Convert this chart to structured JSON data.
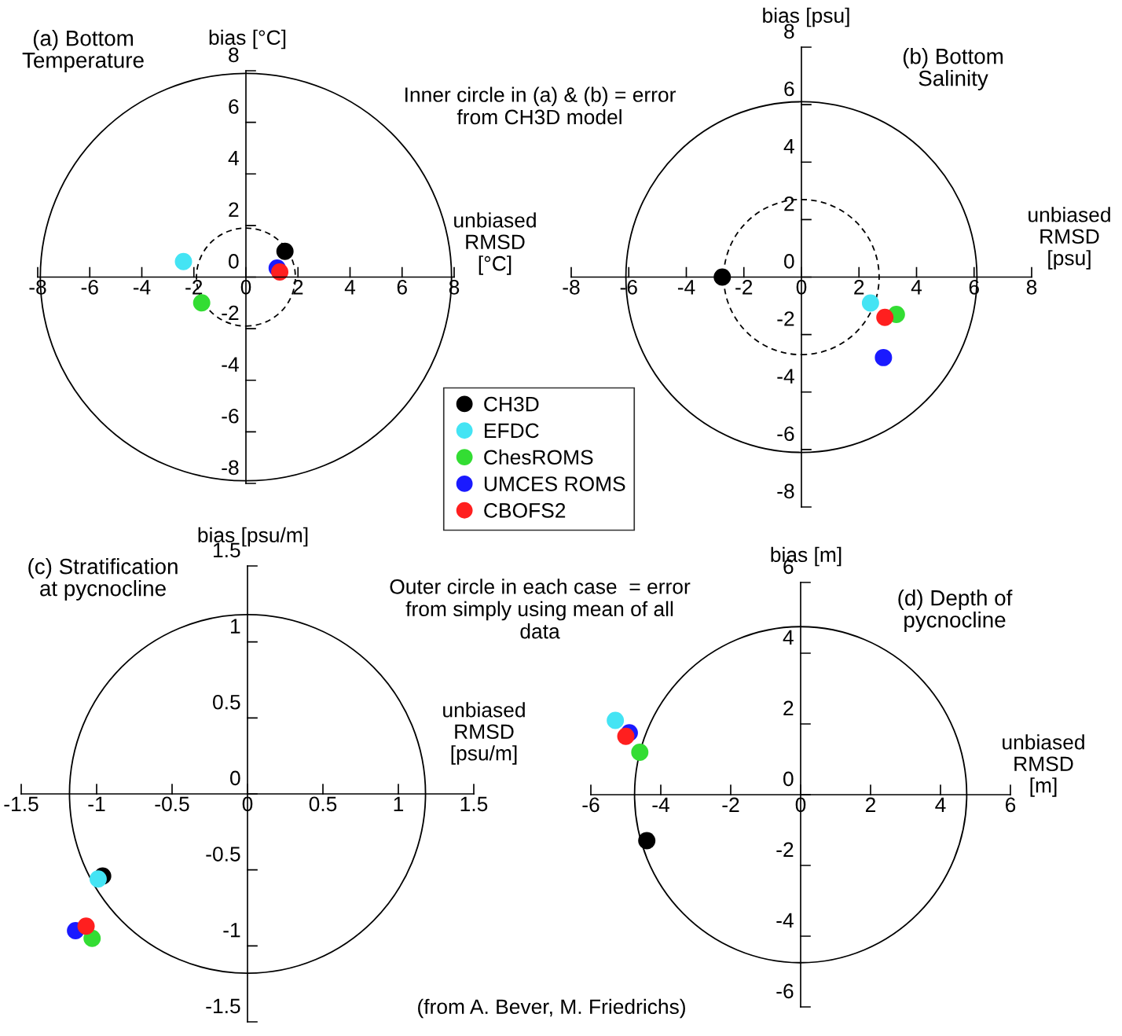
{
  "chart_data": [
    {
      "type": "scatter",
      "title": "(a) Bottom\nTemperature",
      "xlabel": "unbiased\nRMSD\n[°C]",
      "ylabel": "bias [°C]",
      "xlim": [
        -8,
        8
      ],
      "ylim": [
        -8,
        8
      ],
      "xticks": [
        -8,
        -6,
        -4,
        -2,
        0,
        2,
        4,
        6,
        8
      ],
      "yticks": [
        -8,
        -6,
        -4,
        -2,
        0,
        2,
        4,
        6,
        8
      ],
      "grid": false,
      "marker": "circle",
      "legend": "bottom right",
      "annotations": [
        "Inner circle in (a) & (b) = error\nfrom CH3D model"
      ],
      "series": [
        {
          "name": "CH3D",
          "color": "#000000",
          "x": [
            1.5
          ],
          "values": [
            1.0
          ]
        },
        {
          "name": "EFDC",
          "color": "#44e4f4",
          "x": [
            -2.4
          ],
          "values": [
            0.6
          ]
        },
        {
          "name": "ChesROMS",
          "color": "#33dd33",
          "x": [
            -1.7
          ],
          "values": [
            -1.0
          ]
        },
        {
          "name": "UMCES ROMS",
          "color": "#1a1aff",
          "x": [
            1.2
          ],
          "values": [
            0.35
          ]
        },
        {
          "name": "CBOFS2",
          "color": "#ff1f1f",
          "x": [
            1.3
          ],
          "values": [
            0.2
          ]
        }
      ]
    },
    {
      "type": "scatter",
      "title": "(b) Bottom\nSalinity",
      "xlabel": "unbiased\nRMSD\n[psu]",
      "ylabel": "bias [psu]",
      "xlim": [
        -8,
        8
      ],
      "ylim": [
        -8,
        8
      ],
      "xticks": [
        -8,
        -6,
        -4,
        -2,
        0,
        2,
        4,
        6,
        8
      ],
      "yticks": [
        -8,
        -6,
        -4,
        -2,
        0,
        2,
        4,
        6,
        8
      ],
      "grid": false,
      "marker": "circle",
      "series": [
        {
          "name": "CH3D",
          "color": "#000000",
          "x": [
            -2.75
          ],
          "values": [
            0
          ]
        },
        {
          "name": "EFDC",
          "color": "#44e4f4",
          "x": [
            2.4
          ],
          "values": [
            -0.9
          ]
        },
        {
          "name": "ChesROMS",
          "color": "#33dd33",
          "x": [
            3.3
          ],
          "values": [
            -1.3
          ]
        },
        {
          "name": "UMCES ROMS",
          "color": "#1a1aff",
          "x": [
            2.85
          ],
          "values": [
            -2.8
          ]
        },
        {
          "name": "CBOFS2",
          "color": "#ff1f1f",
          "x": [
            2.9
          ],
          "values": [
            -1.4
          ]
        }
      ]
    },
    {
      "type": "scatter",
      "title": "(c) Stratification\nat pycnocline",
      "xlabel": "unbiased\nRMSD\n[psu/m]",
      "ylabel": "bias [psu/m]",
      "xlim": [
        -1.5,
        1.5
      ],
      "ylim": [
        -1.5,
        1.5
      ],
      "xticks": [
        -1.5,
        -1,
        -0.5,
        0,
        0.5,
        1,
        1.5
      ],
      "yticks": [
        -1.5,
        -1,
        -0.5,
        0,
        0.5,
        1,
        1.5
      ],
      "grid": false,
      "marker": "circle",
      "annotations": [
        "Outer circle in each case  = error\nfrom simply using mean of all\ndata",
        "(from A. Bever, M. Friedrichs)"
      ],
      "series": [
        {
          "name": "CH3D",
          "color": "#000000",
          "x": [
            -0.96
          ],
          "values": [
            -0.54
          ]
        },
        {
          "name": "EFDC",
          "color": "#44e4f4",
          "x": [
            -0.99
          ],
          "values": [
            -0.56
          ]
        },
        {
          "name": "ChesROMS",
          "color": "#33dd33",
          "x": [
            -1.03
          ],
          "values": [
            -0.95
          ]
        },
        {
          "name": "UMCES ROMS",
          "color": "#1a1aff",
          "x": [
            -1.14
          ],
          "values": [
            -0.9
          ]
        },
        {
          "name": "CBOFS2",
          "color": "#ff1f1f",
          "x": [
            -1.07
          ],
          "values": [
            -0.87
          ]
        }
      ]
    },
    {
      "type": "scatter",
      "title": "(d) Depth of\npycnocline",
      "xlabel": "unbiased\nRMSD\n[m]",
      "ylabel": "bias [m]",
      "xlim": [
        -6,
        6
      ],
      "ylim": [
        -6,
        6
      ],
      "xticks": [
        -6,
        -4,
        -2,
        0,
        2,
        4,
        6
      ],
      "yticks": [
        -6,
        -4,
        -2,
        0,
        2,
        4,
        6
      ],
      "grid": false,
      "marker": "circle",
      "series": [
        {
          "name": "CH3D",
          "color": "#000000",
          "x": [
            -4.4
          ],
          "values": [
            -1.3
          ]
        },
        {
          "name": "EFDC",
          "color": "#44e4f4",
          "x": [
            -5.3
          ],
          "values": [
            2.1
          ]
        },
        {
          "name": "ChesROMS",
          "color": "#33dd33",
          "x": [
            -4.6
          ],
          "values": [
            1.2
          ]
        },
        {
          "name": "UMCES ROMS",
          "color": "#1a1aff",
          "x": [
            -4.9
          ],
          "values": [
            1.75
          ]
        },
        {
          "name": "CBOFS2",
          "color": "#ff1f1f",
          "x": [
            -5.0
          ],
          "values": [
            1.65
          ]
        }
      ]
    }
  ]
}
